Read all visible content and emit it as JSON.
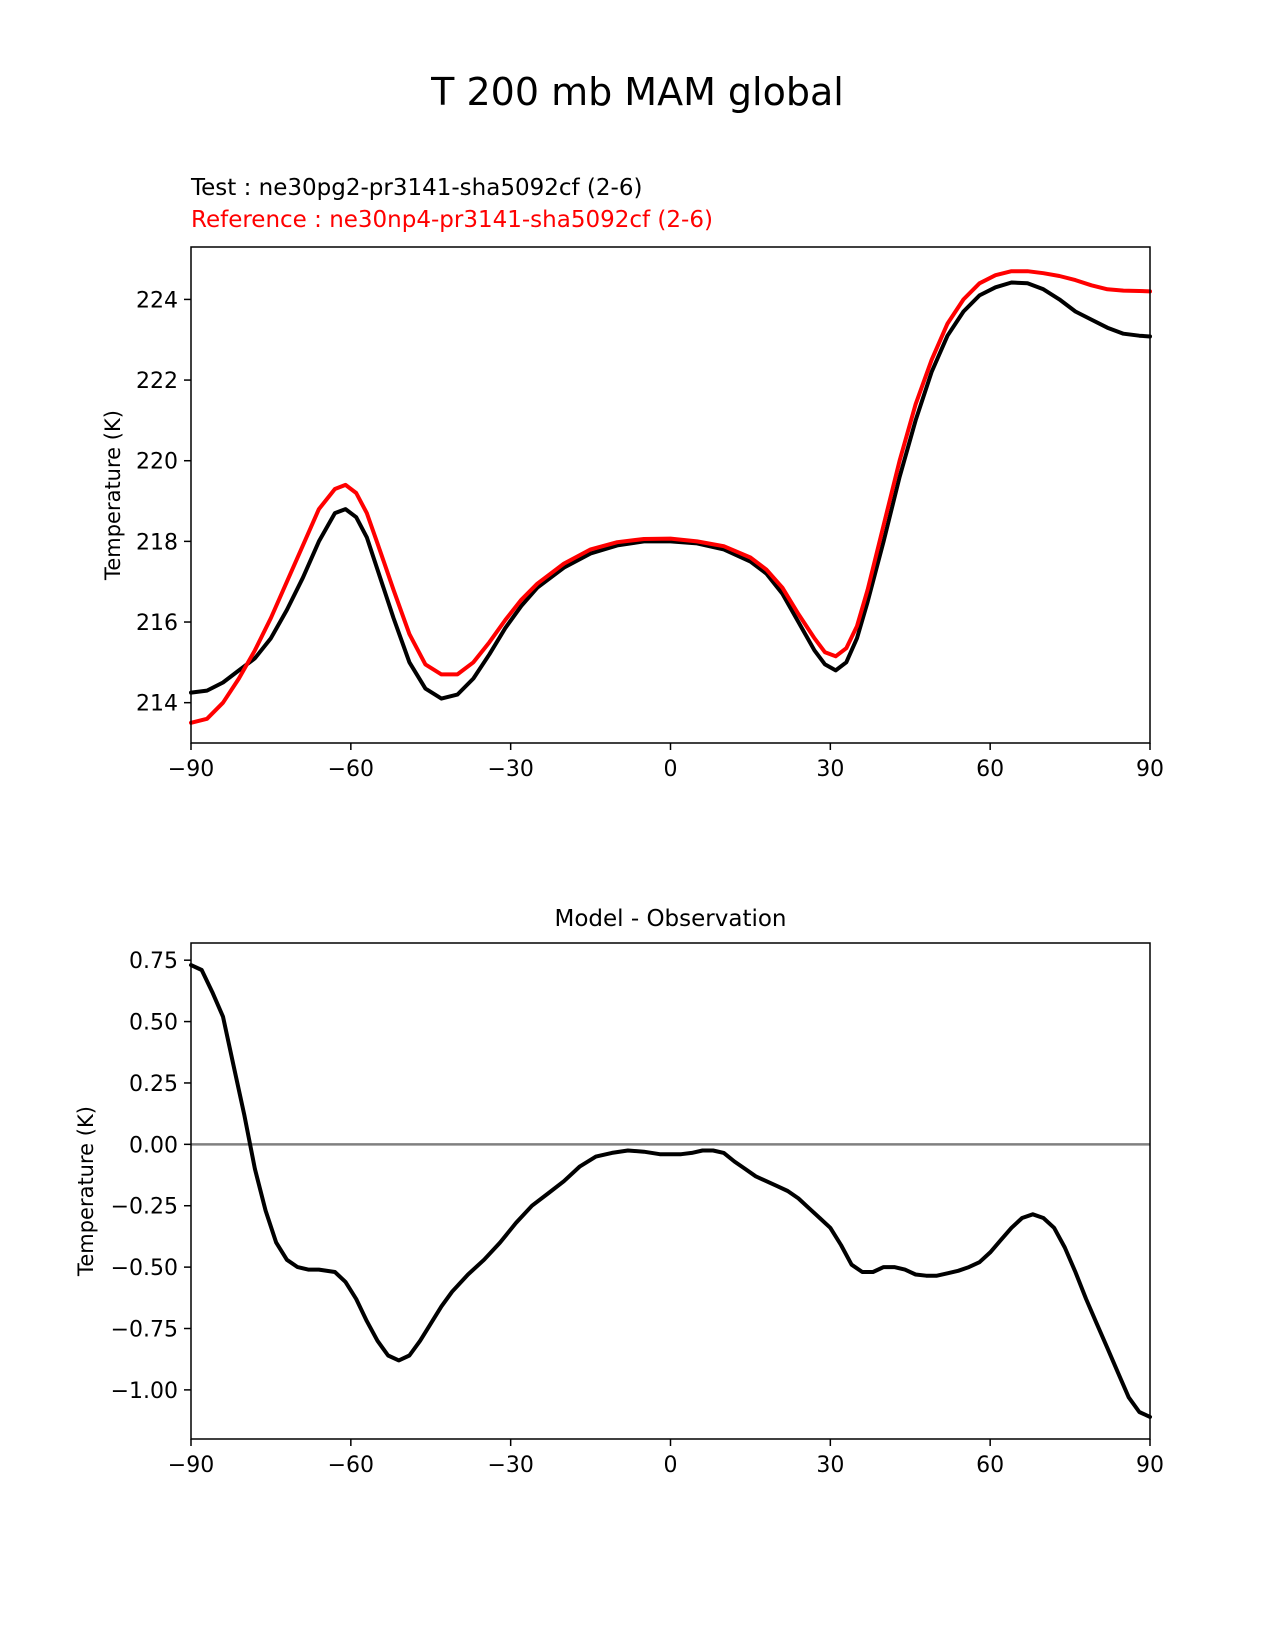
{
  "chart_data": [
    {
      "type": "line",
      "title": "T 200 mb MAM global",
      "xlabel": "",
      "ylabel": "Temperature (K)",
      "xlim": [
        -90,
        90
      ],
      "ylim": [
        213.0,
        225.3
      ],
      "xticks": [
        "−90",
        "−60",
        "−30",
        "0",
        "30",
        "60",
        "90"
      ],
      "xtick_values": [
        -90,
        -60,
        -30,
        0,
        30,
        60,
        90
      ],
      "yticks": [
        "214",
        "216",
        "218",
        "220",
        "222",
        "224"
      ],
      "ytick_values": [
        214,
        216,
        218,
        220,
        222,
        224
      ],
      "legend_test": "Test : ne30pg2-pr3141-sha5092cf (2-6)",
      "legend_ref": "Reference : ne30np4-pr3141-sha5092cf (2-6)",
      "series": [
        {
          "name": "Test",
          "color": "#000000",
          "x": [
            -90,
            -87,
            -84,
            -81,
            -78,
            -75,
            -72,
            -69,
            -66,
            -63,
            -61,
            -59,
            -57,
            -55,
            -52,
            -49,
            -46,
            -43,
            -40,
            -37,
            -34,
            -31,
            -28,
            -25,
            -20,
            -15,
            -10,
            -5,
            0,
            5,
            10,
            15,
            18,
            21,
            24,
            27,
            29,
            31,
            33,
            35,
            37,
            40,
            43,
            46,
            49,
            52,
            55,
            58,
            61,
            64,
            67,
            70,
            73,
            76,
            79,
            82,
            85,
            88,
            90
          ],
          "values": [
            214.25,
            214.3,
            214.5,
            214.8,
            215.1,
            215.6,
            216.3,
            217.1,
            218.0,
            218.7,
            218.8,
            218.6,
            218.1,
            217.3,
            216.1,
            215.0,
            214.35,
            214.1,
            214.2,
            214.6,
            215.2,
            215.85,
            216.4,
            216.85,
            217.35,
            217.7,
            217.9,
            218.0,
            218.0,
            217.95,
            217.8,
            217.5,
            217.2,
            216.7,
            216.0,
            215.3,
            214.95,
            214.8,
            215.0,
            215.6,
            216.5,
            218.0,
            219.6,
            221.0,
            222.2,
            223.1,
            223.7,
            224.1,
            224.3,
            224.42,
            224.4,
            224.25,
            224.0,
            223.7,
            223.5,
            223.3,
            223.15,
            223.1,
            223.08
          ]
        },
        {
          "name": "Reference",
          "color": "#ff0000",
          "x": [
            -90,
            -87,
            -84,
            -81,
            -78,
            -75,
            -72,
            -69,
            -66,
            -63,
            -61,
            -59,
            -57,
            -55,
            -52,
            -49,
            -46,
            -43,
            -40,
            -37,
            -34,
            -31,
            -28,
            -25,
            -20,
            -15,
            -10,
            -5,
            0,
            5,
            10,
            15,
            18,
            21,
            24,
            27,
            29,
            31,
            33,
            35,
            37,
            40,
            43,
            46,
            49,
            52,
            55,
            58,
            61,
            64,
            67,
            70,
            73,
            76,
            79,
            82,
            85,
            88,
            90
          ],
          "values": [
            213.5,
            213.6,
            214.0,
            214.6,
            215.3,
            216.1,
            217.0,
            217.9,
            218.8,
            219.3,
            219.4,
            219.2,
            218.7,
            217.95,
            216.8,
            215.7,
            214.95,
            214.7,
            214.7,
            215.0,
            215.5,
            216.05,
            216.55,
            216.95,
            217.45,
            217.8,
            217.98,
            218.06,
            218.07,
            218.0,
            217.88,
            217.6,
            217.3,
            216.85,
            216.2,
            215.6,
            215.25,
            215.15,
            215.35,
            215.9,
            216.8,
            218.4,
            220.0,
            221.4,
            222.5,
            223.4,
            224.0,
            224.4,
            224.6,
            224.7,
            224.7,
            224.65,
            224.58,
            224.48,
            224.35,
            224.25,
            224.22,
            224.21,
            224.2
          ]
        }
      ]
    },
    {
      "type": "line",
      "title": "Model - Observation",
      "xlabel": "",
      "ylabel": "Temperature (K)",
      "xlim": [
        -90,
        90
      ],
      "ylim": [
        -1.2,
        0.82
      ],
      "xticks": [
        "−90",
        "−60",
        "−30",
        "0",
        "30",
        "60",
        "90"
      ],
      "xtick_values": [
        -90,
        -60,
        -30,
        0,
        30,
        60,
        90
      ],
      "yticks": [
        "0.75",
        "0.50",
        "0.25",
        "0.00",
        "−0.25",
        "−0.50",
        "−0.75",
        "−1.00"
      ],
      "ytick_values": [
        0.75,
        0.5,
        0.25,
        0.0,
        -0.25,
        -0.5,
        -0.75,
        -1.0
      ],
      "zero_line_color": "#808080",
      "series": [
        {
          "name": "Model - Observation",
          "color": "#000000",
          "x": [
            -90,
            -88,
            -86,
            -84,
            -82,
            -80,
            -78,
            -76,
            -74,
            -72,
            -70,
            -68,
            -66,
            -63,
            -61,
            -59,
            -57,
            -55,
            -53,
            -51,
            -49,
            -47,
            -45,
            -43,
            -41,
            -38,
            -35,
            -32,
            -29,
            -26,
            -23,
            -20,
            -17,
            -14,
            -11,
            -8,
            -5,
            -2,
            0,
            2,
            4,
            6,
            8,
            10,
            12,
            14,
            16,
            18,
            20,
            22,
            24,
            26,
            28,
            30,
            32,
            34,
            36,
            38,
            40,
            42,
            44,
            46,
            48,
            50,
            52,
            54,
            56,
            58,
            60,
            62,
            64,
            66,
            68,
            70,
            72,
            74,
            76,
            78,
            80,
            82,
            84,
            86,
            88,
            90
          ],
          "values": [
            0.73,
            0.71,
            0.62,
            0.52,
            0.32,
            0.12,
            -0.1,
            -0.27,
            -0.4,
            -0.47,
            -0.5,
            -0.51,
            -0.51,
            -0.52,
            -0.56,
            -0.63,
            -0.72,
            -0.8,
            -0.86,
            -0.88,
            -0.86,
            -0.8,
            -0.73,
            -0.66,
            -0.6,
            -0.53,
            -0.47,
            -0.4,
            -0.32,
            -0.25,
            -0.2,
            -0.15,
            -0.09,
            -0.05,
            -0.035,
            -0.025,
            -0.03,
            -0.04,
            -0.04,
            -0.04,
            -0.035,
            -0.025,
            -0.025,
            -0.035,
            -0.07,
            -0.1,
            -0.13,
            -0.15,
            -0.17,
            -0.19,
            -0.22,
            -0.26,
            -0.3,
            -0.34,
            -0.41,
            -0.49,
            -0.52,
            -0.52,
            -0.5,
            -0.5,
            -0.51,
            -0.53,
            -0.535,
            -0.535,
            -0.525,
            -0.515,
            -0.5,
            -0.48,
            -0.44,
            -0.39,
            -0.34,
            -0.3,
            -0.285,
            -0.3,
            -0.34,
            -0.42,
            -0.52,
            -0.63,
            -0.73,
            -0.83,
            -0.93,
            -1.03,
            -1.09,
            -1.11
          ]
        }
      ]
    }
  ]
}
